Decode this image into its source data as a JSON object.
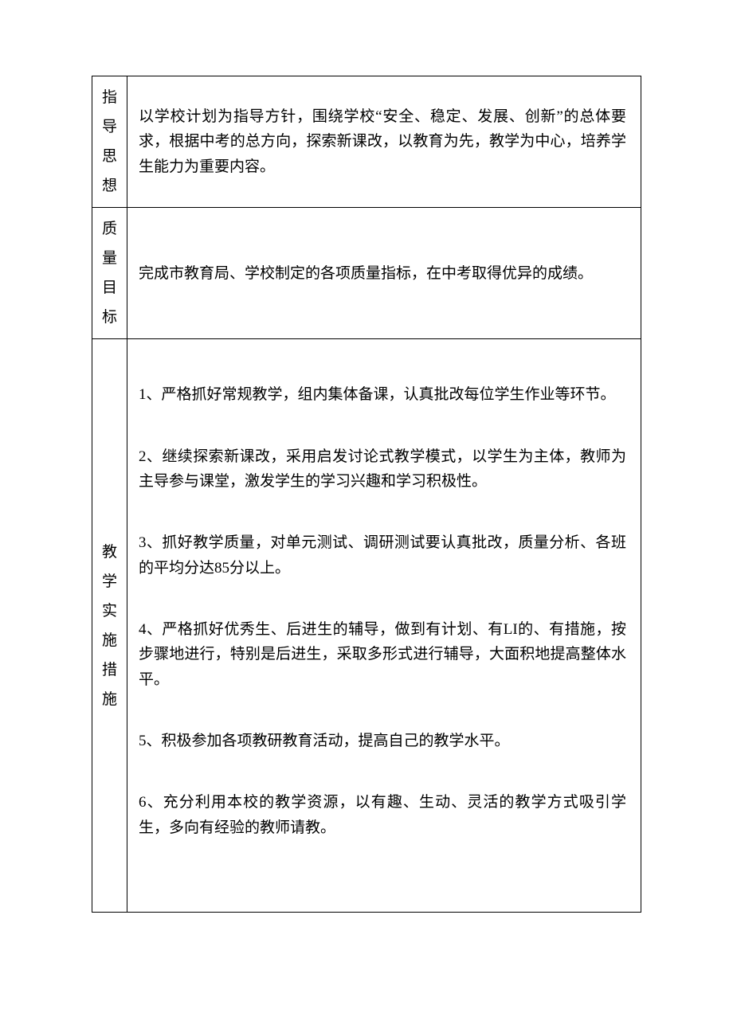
{
  "rows": [
    {
      "label_chars": [
        "指",
        "导",
        "思",
        "想"
      ],
      "content_html": "<p>以学校计划为指导方针，围绕学校“安全、稳定、发展、创新”的总体要求，根据中考的总方向，探索新课改，以教育为先，教学为中心，培养学生能力为重要内容。</p>",
      "content_class": ""
    },
    {
      "label_chars": [
        "质",
        "量",
        "目",
        "标"
      ],
      "content_html": "<p>完成市教育局、学校制定的各项质量指标，在中考取得优异的成绩。</p>",
      "content_class": ""
    },
    {
      "label_chars": [
        "教",
        "学",
        "实",
        "施",
        "措",
        "施"
      ],
      "content_html": "<p>1、严格抓好常规教学，组内集体备课，认真批改每位学生作业等环节。</p><p>2、继续探索新课改，采用启发讨论式教学模式，以学生为主体，教师为主导参与课堂，激发学生的学习兴趣和学习积极性。</p><p>3、抓好教学质量，对单元测试、调研测试要认真批改，质量分析、各班的平均分达85分以上。</p><p>4、严格抓好优秀生、后进生的辅导，做到有计划、有LI的、有措施，按步骤地进行，特别是后进生，采取多形式进行辅导，大面积地提高整体水平。</p><p>5、积极参加各项教研教育活动，提高自己的教学水平。</p><p>6、充分利用本校的教学资源，以有趣、生动、灵活的教学方式吸引学生，多向有经验的教师请教。</p>",
      "content_class": "measures"
    }
  ]
}
